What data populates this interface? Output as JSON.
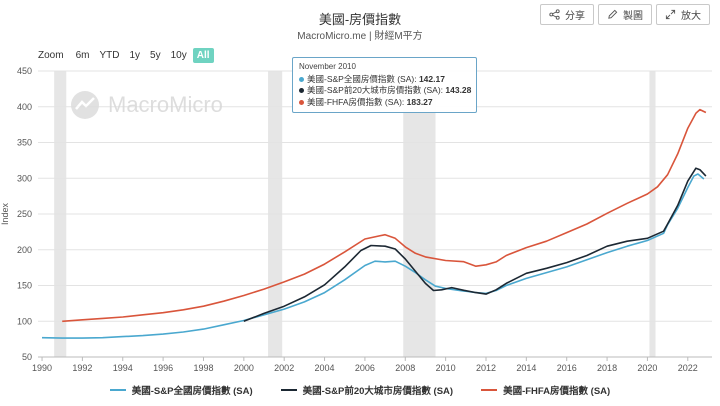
{
  "header": {
    "title": "美國-房價指數",
    "subtitle": "MacroMicro.me | 財經M平方"
  },
  "toolbar": {
    "share_label": "分享",
    "draw_label": "製圖",
    "zoom_label": "放大"
  },
  "range_selector": {
    "label": "Zoom",
    "options": [
      "6m",
      "YTD",
      "1y",
      "5y",
      "10y",
      "All"
    ],
    "selected": "All"
  },
  "watermark": "MacroMicro",
  "tooltip": {
    "date": "November 2010",
    "rows": [
      {
        "label": "美國-S&P全國房價指數 (SA): ",
        "value": "142.17",
        "color": "#4aa8cf"
      },
      {
        "label": "美國-S&P前20大城市房價指數 (SA): ",
        "value": "143.28",
        "color": "#1c2833"
      },
      {
        "label": "美國-FHFA房價指數 (SA): ",
        "value": "183.27",
        "color": "#d9553b"
      }
    ]
  },
  "chart_data": {
    "type": "line",
    "ylabel": "Index",
    "ylim": [
      50,
      450
    ],
    "yticks": [
      50,
      100,
      150,
      200,
      250,
      300,
      350,
      400,
      450
    ],
    "xlim": [
      1989.8,
      2023.2
    ],
    "xticks": [
      1990,
      1992,
      1994,
      1996,
      1998,
      2000,
      2002,
      2004,
      2006,
      2008,
      2010,
      2012,
      2014,
      2016,
      2018,
      2020,
      2022
    ],
    "grid": "horizontal",
    "recessions": [
      [
        1990.6,
        1991.2
      ],
      [
        2001.2,
        2001.9
      ],
      [
        2007.9,
        2009.5
      ],
      [
        2020.1,
        2020.4
      ]
    ],
    "legend": "bottom",
    "series": [
      {
        "name": "美國-S&P全國房價指數 (SA)",
        "color": "#4aa8cf",
        "points": [
          [
            1990,
            77
          ],
          [
            1991,
            76.5
          ],
          [
            1992,
            76.5
          ],
          [
            1993,
            77
          ],
          [
            1994,
            78.5
          ],
          [
            1995,
            80
          ],
          [
            1996,
            82
          ],
          [
            1997,
            85
          ],
          [
            1998,
            89
          ],
          [
            1999,
            95
          ],
          [
            2000,
            101
          ],
          [
            2001,
            109
          ],
          [
            2002,
            117
          ],
          [
            2003,
            127
          ],
          [
            2004,
            140
          ],
          [
            2005,
            158
          ],
          [
            2006,
            178
          ],
          [
            2006.5,
            184
          ],
          [
            2007,
            183
          ],
          [
            2007.5,
            184
          ],
          [
            2008,
            177
          ],
          [
            2008.5,
            168
          ],
          [
            2009,
            158
          ],
          [
            2009.5,
            149
          ],
          [
            2010,
            146
          ],
          [
            2010.9,
            142.17
          ],
          [
            2011,
            142
          ],
          [
            2011.5,
            140
          ],
          [
            2012,
            139
          ],
          [
            2012.5,
            143
          ],
          [
            2013,
            150
          ],
          [
            2014,
            160
          ],
          [
            2015,
            168
          ],
          [
            2016,
            176
          ],
          [
            2017,
            186
          ],
          [
            2018,
            196
          ],
          [
            2019,
            205
          ],
          [
            2020,
            213
          ],
          [
            2020.8,
            223
          ],
          [
            2021,
            235
          ],
          [
            2021.5,
            258
          ],
          [
            2022,
            287
          ],
          [
            2022.3,
            303
          ],
          [
            2022.5,
            306
          ],
          [
            2022.8,
            299
          ]
        ]
      },
      {
        "name": "美國-S&P前20大城市房價指數 (SA)",
        "color": "#1c2833",
        "points": [
          [
            2000,
            100
          ],
          [
            2001,
            111
          ],
          [
            2002,
            121
          ],
          [
            2003,
            134
          ],
          [
            2004,
            151
          ],
          [
            2005,
            176
          ],
          [
            2005.8,
            199
          ],
          [
            2006.3,
            206
          ],
          [
            2007,
            205
          ],
          [
            2007.5,
            201
          ],
          [
            2008,
            187
          ],
          [
            2008.5,
            170
          ],
          [
            2009,
            153
          ],
          [
            2009.4,
            143
          ],
          [
            2009.8,
            144
          ],
          [
            2010.3,
            147
          ],
          [
            2010.9,
            143.28
          ],
          [
            2011.5,
            140
          ],
          [
            2012,
            138
          ],
          [
            2012.5,
            144
          ],
          [
            2013,
            153
          ],
          [
            2014,
            167
          ],
          [
            2015,
            174
          ],
          [
            2016,
            182
          ],
          [
            2017,
            192
          ],
          [
            2018,
            205
          ],
          [
            2019,
            212
          ],
          [
            2020,
            216
          ],
          [
            2020.8,
            226
          ],
          [
            2021,
            236
          ],
          [
            2021.5,
            262
          ],
          [
            2022,
            296
          ],
          [
            2022.4,
            314
          ],
          [
            2022.6,
            312
          ],
          [
            2022.9,
            303
          ]
        ]
      },
      {
        "name": "美國-FHFA房價指數 (SA)",
        "color": "#d9553b",
        "points": [
          [
            1991,
            100
          ],
          [
            1992,
            102
          ],
          [
            1993,
            104
          ],
          [
            1994,
            106
          ],
          [
            1995,
            109
          ],
          [
            1996,
            112
          ],
          [
            1997,
            116
          ],
          [
            1998,
            121
          ],
          [
            1999,
            128
          ],
          [
            2000,
            136
          ],
          [
            2001,
            145
          ],
          [
            2002,
            155
          ],
          [
            2003,
            166
          ],
          [
            2004,
            180
          ],
          [
            2005,
            197
          ],
          [
            2006,
            215
          ],
          [
            2007,
            221
          ],
          [
            2007.5,
            216
          ],
          [
            2008,
            204
          ],
          [
            2008.5,
            195
          ],
          [
            2009,
            190
          ],
          [
            2010,
            185
          ],
          [
            2010.9,
            183.27
          ],
          [
            2011.5,
            177
          ],
          [
            2012,
            179
          ],
          [
            2012.5,
            183
          ],
          [
            2013,
            192
          ],
          [
            2014,
            203
          ],
          [
            2015,
            212
          ],
          [
            2016,
            224
          ],
          [
            2017,
            236
          ],
          [
            2018,
            251
          ],
          [
            2019,
            265
          ],
          [
            2020,
            278
          ],
          [
            2020.5,
            288
          ],
          [
            2021,
            305
          ],
          [
            2021.5,
            334
          ],
          [
            2022,
            370
          ],
          [
            2022.4,
            391
          ],
          [
            2022.6,
            396
          ],
          [
            2022.9,
            392
          ]
        ]
      }
    ]
  }
}
